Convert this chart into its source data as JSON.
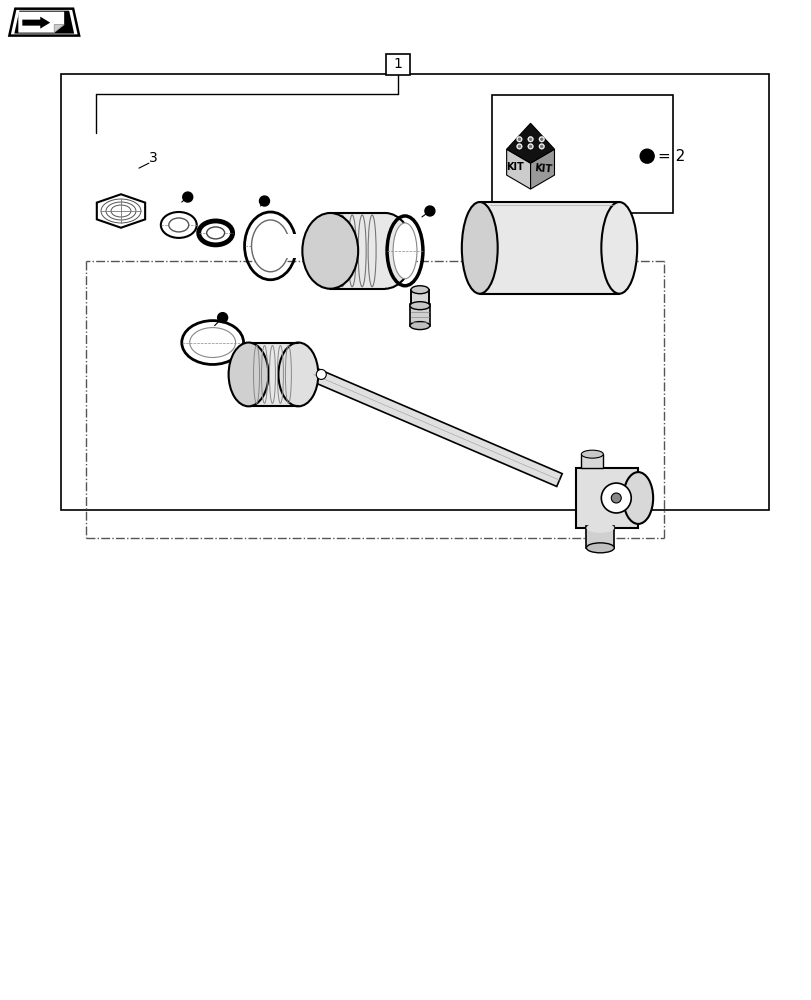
{
  "background_color": "#ffffff",
  "line_color": "#000000",
  "gray1": "#e8e8e8",
  "gray2": "#d0d0d0",
  "gray3": "#b0b0b0",
  "dpi": 100,
  "fig_w": 8.12,
  "fig_h": 10.0,
  "label1": "1",
  "label3": "3",
  "kit_text1": "KIT",
  "kit_text2": "KIT",
  "dot_label": "= 2"
}
